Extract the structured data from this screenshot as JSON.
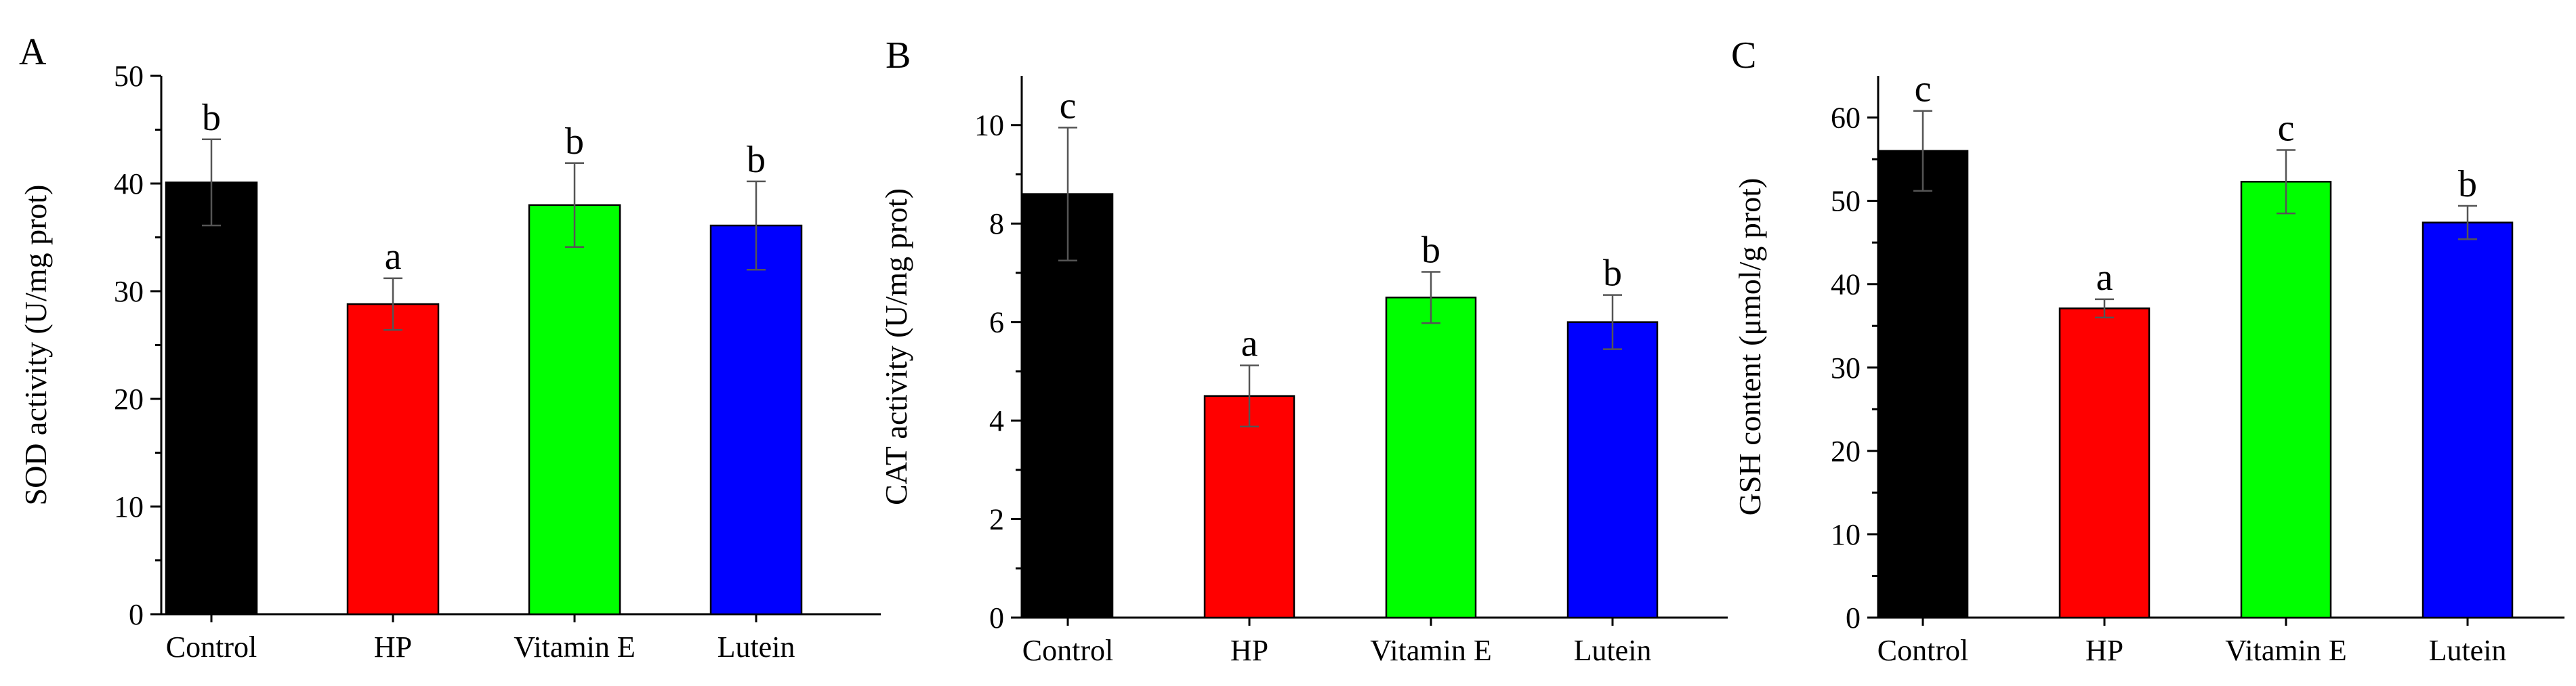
{
  "chart_data": [
    {
      "type": "bar",
      "panel_label": "A",
      "categories": [
        "Control",
        "HP",
        "Vitamin E",
        "Lutein"
      ],
      "values": [
        40.1,
        28.8,
        38.0,
        36.1
      ],
      "errors": [
        4.0,
        2.4,
        3.9,
        4.1
      ],
      "letters": [
        "b",
        "a",
        "b",
        "b"
      ],
      "colors": [
        "#000000",
        "#ff0000",
        "#00ff00",
        "#0000ff"
      ],
      "ylabel": "SOD activity (U/mg prot)",
      "xlabel": "",
      "ylim": [
        0,
        50
      ],
      "yticks": [
        0,
        10,
        20,
        30,
        40,
        50
      ],
      "ytick_labels": [
        "0",
        "10",
        "20",
        "30",
        "40",
        "50"
      ]
    },
    {
      "type": "bar",
      "panel_label": "B",
      "categories": [
        "Control",
        "HP",
        "Vitamin E",
        "Lutein"
      ],
      "values": [
        8.6,
        4.5,
        6.5,
        6.0
      ],
      "errors": [
        1.35,
        0.62,
        0.52,
        0.55
      ],
      "letters": [
        "c",
        "a",
        "b",
        "b"
      ],
      "colors": [
        "#000000",
        "#ff0000",
        "#00ff00",
        "#0000ff"
      ],
      "ylabel": "CAT activity (U/mg prot)",
      "xlabel": "",
      "ylim": [
        0,
        11
      ],
      "yticks": [
        0,
        2,
        4,
        6,
        8,
        10
      ],
      "ytick_labels": [
        "0",
        "2",
        "4",
        "6",
        "8",
        "10"
      ]
    },
    {
      "type": "bar",
      "panel_label": "C",
      "categories": [
        "Control",
        "HP",
        "Vitamin E",
        "Lutein"
      ],
      "values": [
        56.0,
        37.1,
        52.3,
        47.4
      ],
      "errors": [
        4.8,
        1.1,
        3.8,
        2.0
      ],
      "letters": [
        "c",
        "a",
        "c",
        "b"
      ],
      "colors": [
        "#000000",
        "#ff0000",
        "#00ff00",
        "#0000ff"
      ],
      "ylabel": "GSH content (μmol/g prot)",
      "xlabel": "",
      "ylim": [
        0,
        65
      ],
      "yticks": [
        0,
        10,
        20,
        30,
        40,
        50,
        60
      ],
      "ytick_labels": [
        "0",
        "10",
        "20",
        "30",
        "40",
        "50",
        "60"
      ]
    }
  ]
}
